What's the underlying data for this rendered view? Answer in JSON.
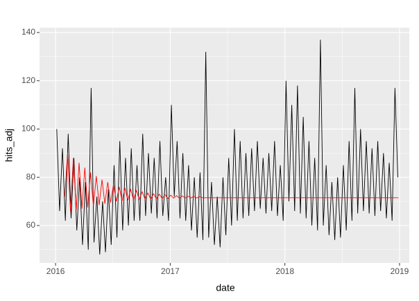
{
  "chart_data": {
    "type": "line",
    "x_label": "date",
    "y_label": "hits_adj",
    "xlim": [
      2015.86,
      2019.085
    ],
    "ylim": [
      44.5,
      142
    ],
    "xticks": [
      2016,
      2017,
      2018,
      2019
    ],
    "yticks": [
      60,
      80,
      100,
      120,
      140
    ],
    "minor_xticks": [
      2016.5,
      2017.5,
      2018.5
    ],
    "minor_yticks": [
      50,
      70,
      90,
      110,
      130
    ],
    "grid": true,
    "background": "#ebebeb",
    "series": [
      {
        "color": "#000000",
        "x": [
          2016.01,
          2016.035,
          2016.06,
          2016.085,
          2016.11,
          2016.135,
          2016.16,
          2016.185,
          2016.21,
          2016.235,
          2016.26,
          2016.285,
          2016.31,
          2016.335,
          2016.36,
          2016.385,
          2016.41,
          2016.435,
          2016.46,
          2016.485,
          2016.51,
          2016.535,
          2016.56,
          2016.585,
          2016.61,
          2016.635,
          2016.66,
          2016.685,
          2016.71,
          2016.735,
          2016.76,
          2016.785,
          2016.81,
          2016.835,
          2016.86,
          2016.885,
          2016.91,
          2016.935,
          2016.96,
          2016.985,
          2017.01,
          2017.035,
          2017.06,
          2017.085,
          2017.11,
          2017.135,
          2017.16,
          2017.185,
          2017.21,
          2017.235,
          2017.26,
          2017.285,
          2017.31,
          2017.335,
          2017.36,
          2017.385,
          2017.41,
          2017.435,
          2017.46,
          2017.485,
          2017.51,
          2017.535,
          2017.56,
          2017.585,
          2017.61,
          2017.635,
          2017.66,
          2017.685,
          2017.71,
          2017.735,
          2017.76,
          2017.785,
          2017.81,
          2017.835,
          2017.86,
          2017.885,
          2017.91,
          2017.935,
          2017.96,
          2017.985,
          2018.01,
          2018.035,
          2018.06,
          2018.085,
          2018.11,
          2018.135,
          2018.16,
          2018.185,
          2018.21,
          2018.235,
          2018.26,
          2018.285,
          2018.31,
          2018.335,
          2018.36,
          2018.385,
          2018.41,
          2018.435,
          2018.46,
          2018.485,
          2018.51,
          2018.535,
          2018.56,
          2018.585,
          2018.61,
          2018.635,
          2018.66,
          2018.685,
          2018.71,
          2018.735,
          2018.76,
          2018.785,
          2018.81,
          2018.835,
          2018.86,
          2018.885,
          2018.91,
          2018.935,
          2018.96,
          2018.985
        ],
        "values": [
          100,
          66,
          92,
          62,
          98,
          63,
          88,
          58,
          80,
          52,
          78,
          50,
          117,
          53,
          72,
          48,
          70,
          49,
          75,
          52,
          85,
          55,
          95,
          58,
          88,
          60,
          92,
          62,
          85,
          62,
          98,
          64,
          90,
          65,
          88,
          63,
          95,
          64,
          80,
          62,
          110,
          72,
          95,
          63,
          90,
          62,
          85,
          58,
          80,
          55,
          82,
          54,
          132,
          55,
          78,
          52,
          72,
          51,
          80,
          56,
          88,
          60,
          100,
          62,
          95,
          63,
          90,
          64,
          92,
          66,
          95,
          67,
          88,
          65,
          90,
          66,
          95,
          64,
          85,
          62,
          120,
          70,
          110,
          66,
          118,
          65,
          105,
          63,
          95,
          60,
          88,
          58,
          137,
          60,
          85,
          56,
          78,
          54,
          80,
          55,
          85,
          58,
          95,
          62,
          117,
          65,
          100,
          66,
          95,
          65,
          92,
          64,
          95,
          66,
          90,
          63,
          86,
          62,
          117,
          80
        ]
      },
      {
        "color": "#ff0000",
        "x": [
          2016.08,
          2016.105,
          2016.13,
          2016.155,
          2016.18,
          2016.205,
          2016.23,
          2016.255,
          2016.28,
          2016.305,
          2016.33,
          2016.355,
          2016.38,
          2016.405,
          2016.43,
          2016.455,
          2016.48,
          2016.505,
          2016.53,
          2016.555,
          2016.58,
          2016.605,
          2016.63,
          2016.655,
          2016.68,
          2016.705,
          2016.73,
          2016.755,
          2016.78,
          2016.805,
          2016.83,
          2016.855,
          2016.88,
          2016.905,
          2016.93,
          2016.955,
          2016.98,
          2017.005,
          2017.03,
          2017.055,
          2017.08,
          2017.105,
          2017.13,
          2017.155,
          2017.18,
          2017.205,
          2017.23,
          2017.255,
          2017.28,
          2018.99
        ],
        "values": [
          72,
          90,
          66,
          88,
          66.5,
          86,
          67,
          84,
          67.5,
          82,
          68,
          80.5,
          68.5,
          79,
          69,
          78,
          69.5,
          77,
          70,
          76,
          70.2,
          75.5,
          70.5,
          75,
          70.7,
          74.5,
          70.8,
          74,
          71,
          73.5,
          71,
          73.2,
          71.1,
          73,
          71.2,
          72.8,
          71.2,
          72.6,
          71.3,
          72.4,
          71.3,
          72.3,
          71.4,
          72.2,
          71.4,
          72.1,
          71.4,
          72,
          71.5,
          71.5
        ]
      }
    ]
  }
}
